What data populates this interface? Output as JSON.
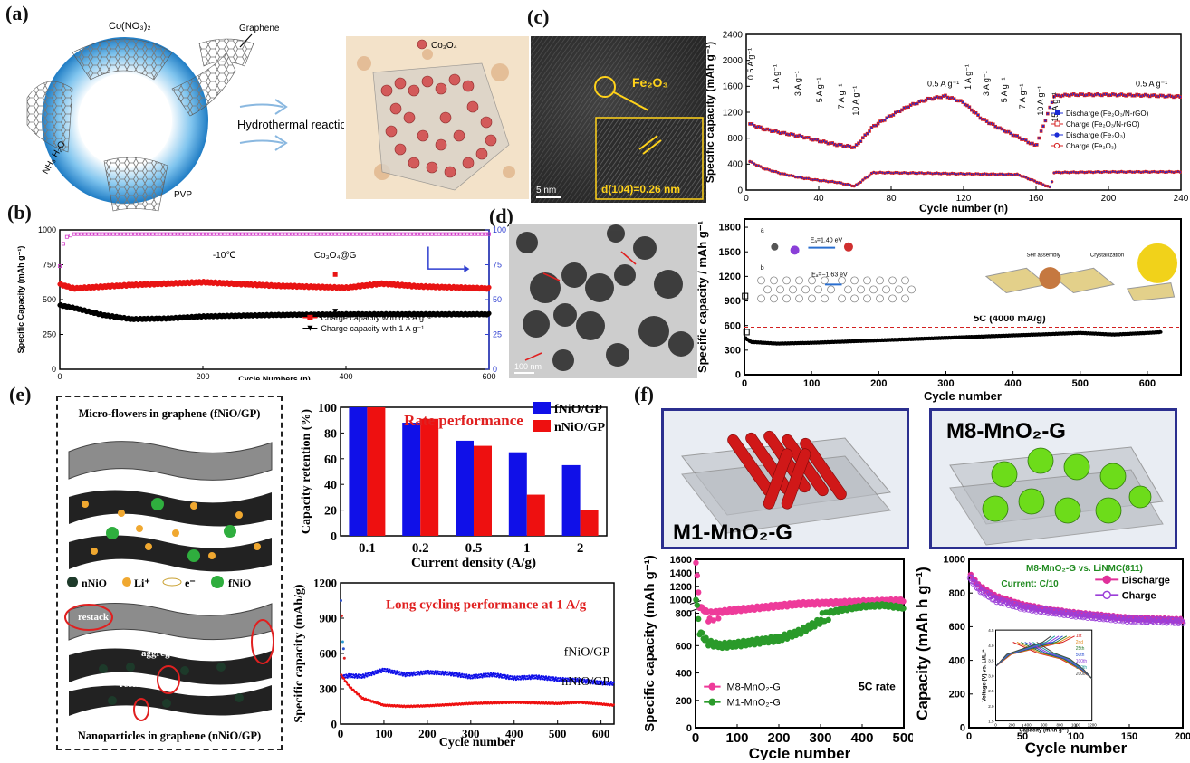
{
  "labels": {
    "a": "(a)",
    "b": "(b)",
    "c": "(c)",
    "d": "(d)",
    "e": "(e)",
    "f": "(f)"
  },
  "panel_a": {
    "reagent": "Co(NO₃)₂",
    "graphene": "Graphene",
    "nh3": "NH₃ H₂O",
    "pvp": "PVP",
    "reaction": "Hydrothermal reaction",
    "co3o4": "Co₃O₄",
    "colors": {
      "ring": "#2a9ad6",
      "sphere": "#d66a6a",
      "substrate": "#d9a779"
    }
  },
  "panel_c_tem": {
    "phase": "Fe₂O₃",
    "spacing": "d(104)=0.26 nm",
    "scale": "5 nm"
  },
  "panel_d_tem": {
    "scale": "100 nm"
  },
  "chart_data": [
    {
      "id": "c",
      "type": "scatter",
      "xlabel": "Cycle number (n)",
      "ylabel": "Specific capacity (mAh g⁻¹)",
      "xlim": [
        0,
        240
      ],
      "ylim": [
        0,
        2400
      ],
      "xticks": [
        0,
        40,
        80,
        120,
        160,
        200,
        240
      ],
      "yticks": [
        0,
        400,
        800,
        1200,
        1600,
        2000,
        2400
      ],
      "rate_labels": [
        "0.5 A g⁻¹",
        "1 A g⁻¹",
        "3 A g⁻¹",
        "5 A g⁻¹",
        "7 A g⁻¹",
        "10 A g⁻¹",
        "0.5 A g⁻¹",
        "1 A g⁻¹",
        "3 A g⁻¹",
        "5 A g⁻¹",
        "7 A g⁻¹",
        "10 A g⁻¹",
        "15 A g⁻¹",
        "0.5 A g⁻¹"
      ],
      "legend": [
        "Discharge (Fe₂O₃/N-rGO)",
        "Charge (Fe₂O₃/N-rGO)",
        "Discharge (Fe₂O₃)",
        "Charge (Fe₂O₃)"
      ],
      "series": [
        {
          "name": "Fe₂O₃/N-rGO",
          "x": [
            2,
            10,
            20,
            30,
            40,
            50,
            60,
            70,
            80,
            90,
            100,
            110,
            120,
            130,
            140,
            150,
            160,
            170,
            180,
            200,
            220,
            240
          ],
          "values": [
            1020,
            940,
            880,
            830,
            760,
            700,
            660,
            980,
            1150,
            1300,
            1400,
            1450,
            1350,
            1100,
            950,
            820,
            680,
            1450,
            1470,
            1470,
            1460,
            1440
          ]
        },
        {
          "name": "Fe₂O₃",
          "x": [
            2,
            10,
            20,
            30,
            40,
            50,
            60,
            70,
            100,
            120,
            150,
            168,
            170,
            200,
            240
          ],
          "values": [
            440,
            330,
            250,
            190,
            150,
            120,
            60,
            270,
            260,
            250,
            240,
            40,
            270,
            280,
            280
          ]
        }
      ],
      "colors": [
        "#1a2bd6",
        "#d62020"
      ]
    },
    {
      "id": "b",
      "type": "line",
      "xlabel": "Cycle Numbers (n)",
      "ylabel": "Specific Capacity (mAh g⁻¹)",
      "y2label": "Coulombic efficiency (%)",
      "annotation": "-10℃",
      "material": "Co₃O₄@G",
      "xlim": [
        0,
        600
      ],
      "ylim": [
        0,
        1000
      ],
      "y2lim": [
        0,
        100
      ],
      "xticks": [
        0,
        200,
        400,
        600
      ],
      "yticks": [
        0,
        250,
        500,
        750,
        1000
      ],
      "y2ticks": [
        0,
        25,
        50,
        75,
        100
      ],
      "legend": [
        "Charge capacity with 0.5 A g⁻¹",
        "Charge capacity with 1 A g⁻¹"
      ],
      "series": [
        {
          "name": "Charge capacity with 0.5 A g⁻¹",
          "x": [
            0,
            20,
            50,
            100,
            200,
            300,
            400,
            450,
            500,
            600
          ],
          "values": [
            610,
            580,
            590,
            605,
            625,
            600,
            585,
            615,
            595,
            580
          ]
        },
        {
          "name": "Charge capacity with 1 A g⁻¹",
          "x": [
            0,
            20,
            60,
            100,
            150,
            200,
            300,
            400,
            500,
            600
          ],
          "values": [
            460,
            440,
            390,
            360,
            365,
            380,
            390,
            395,
            395,
            395
          ]
        },
        {
          "name": "Coulombic efficiency",
          "x": [
            0,
            5,
            10,
            20,
            50,
            100,
            600
          ],
          "values": [
            74,
            90,
            95,
            97,
            97,
            97,
            97
          ]
        }
      ],
      "colors": [
        "#e81414",
        "#000000",
        "#d23cc8"
      ]
    },
    {
      "id": "d",
      "type": "line",
      "xlabel": "Cycle number",
      "ylabel": "Specific capacity / mAh g⁻¹",
      "annotation": "5C (4000 mA/g)",
      "inset_text": [
        "Eₐ=1.40 eV",
        "Eₐ=−1.63 eV",
        "Self assembly",
        "Crystallization",
        "a",
        "b"
      ],
      "xlim": [
        0,
        650
      ],
      "ylim": [
        0,
        1900
      ],
      "xticks": [
        0,
        100,
        200,
        300,
        400,
        500,
        600
      ],
      "yticks": [
        0,
        300,
        600,
        900,
        1200,
        1500,
        1800
      ],
      "series": [
        {
          "name": "",
          "x": [
            1,
            10,
            50,
            100,
            200,
            300,
            400,
            500,
            550,
            600,
            620
          ],
          "values": [
            450,
            400,
            380,
            390,
            420,
            450,
            480,
            510,
            490,
            510,
            520
          ]
        }
      ],
      "colors": [
        "#000000",
        "#d32020"
      ]
    },
    {
      "id": "e1",
      "type": "bar",
      "title": "Rate performance",
      "xlabel": "Current density (A/g)",
      "ylabel": "Capacity retention (%)",
      "categories": [
        "0.1",
        "0.2",
        "0.5",
        "1",
        "2"
      ],
      "series": [
        {
          "name": "fNiO/GP",
          "values": [
            100,
            88,
            74,
            65,
            55
          ]
        },
        {
          "name": "nNiO/GP",
          "values": [
            100,
            91,
            70,
            32,
            20
          ]
        }
      ],
      "ylim": [
        0,
        100
      ],
      "yticks": [
        0,
        20,
        40,
        60,
        80,
        100
      ],
      "colors": [
        "#1010e8",
        "#ee1010"
      ]
    },
    {
      "id": "e2",
      "type": "line",
      "title": "Long cycling performance at 1 A/g",
      "xlabel": "Cycle number",
      "ylabel": "Specific capacity (mAh/g)",
      "xlim": [
        0,
        630
      ],
      "ylim": [
        0,
        1200
      ],
      "xticks": [
        0,
        100,
        200,
        300,
        400,
        500,
        600
      ],
      "yticks": [
        0,
        300,
        600,
        900,
        1200
      ],
      "series": [
        {
          "name": "fNiO/GP",
          "x": [
            1,
            20,
            50,
            100,
            150,
            200,
            250,
            300,
            350,
            400,
            450,
            500,
            550,
            600,
            630
          ],
          "values": [
            400,
            410,
            405,
            460,
            420,
            440,
            430,
            400,
            420,
            390,
            400,
            380,
            370,
            350,
            345
          ]
        },
        {
          "name": "nNiO/GP",
          "x": [
            1,
            20,
            50,
            100,
            150,
            200,
            250,
            300,
            350,
            400,
            450,
            500,
            550,
            600,
            630
          ],
          "values": [
            420,
            320,
            220,
            160,
            150,
            155,
            165,
            175,
            180,
            185,
            180,
            175,
            185,
            170,
            160
          ]
        }
      ],
      "colors": [
        "#1010e8",
        "#ee1010"
      ]
    },
    {
      "id": "f1",
      "type": "scatter",
      "xlabel": "Cycle number",
      "ylabel": "Specific capacity (mAh g⁻¹)",
      "annotation": "5C rate",
      "xlim": [
        0,
        500
      ],
      "yticks": [
        0,
        200,
        400,
        600,
        800,
        1000,
        1200,
        1400,
        1600
      ],
      "xticks": [
        0,
        100,
        200,
        300,
        400,
        500
      ],
      "series": [
        {
          "name": "M8-MnO₂-G",
          "x": [
            1,
            10,
            30,
            60,
            100,
            150,
            200,
            250,
            300,
            350,
            400,
            450,
            500
          ],
          "values": [
            1550,
            900,
            800,
            820,
            850,
            880,
            910,
            940,
            950,
            960,
            970,
            980,
            990
          ]
        },
        {
          "name": "M1-MnO₂-G",
          "x": [
            1,
            10,
            30,
            60,
            100,
            150,
            200,
            250,
            300,
            350,
            400,
            450,
            500
          ],
          "values": [
            1000,
            700,
            620,
            600,
            610,
            630,
            650,
            700,
            780,
            850,
            900,
            920,
            880
          ]
        }
      ],
      "colors": [
        "#ee3b9a",
        "#2a9a2a"
      ]
    },
    {
      "id": "f2",
      "type": "scatter",
      "xlabel": "Cycle number",
      "ylabel": "Capacity (mAh h g⁻¹)",
      "annotation": "M8-MnO₂-G vs. LiNMC(811)",
      "current": "Current: C/10",
      "xlim": [
        0,
        200
      ],
      "ylim": [
        0,
        1000
      ],
      "xticks": [
        0,
        50,
        100,
        150,
        200
      ],
      "yticks": [
        0,
        200,
        400,
        600,
        800,
        1000
      ],
      "legend": [
        "Discharge",
        "Charge"
      ],
      "series": [
        {
          "name": "Discharge",
          "x": [
            1,
            10,
            25,
            50,
            75,
            100,
            125,
            150,
            175,
            200
          ],
          "values": [
            910,
            840,
            780,
            730,
            700,
            680,
            665,
            650,
            645,
            640
          ]
        },
        {
          "name": "Charge",
          "x": [
            1,
            10,
            25,
            50,
            75,
            100,
            125,
            150,
            175,
            200
          ],
          "values": [
            890,
            820,
            760,
            715,
            690,
            670,
            655,
            640,
            635,
            630
          ]
        }
      ],
      "inset": {
        "xlabel": "Capacity (mAh g⁻¹)",
        "ylabel": "Voltage (V) vs. Li/Li⁺",
        "cycles": [
          "1st",
          "2nd",
          "25th",
          "50th",
          "100th",
          "150th",
          "200th"
        ],
        "xticks": [
          "0",
          "200",
          "400",
          "600",
          "800",
          "1000",
          "1200"
        ],
        "yticks": [
          "1.5",
          "2.0",
          "2.5",
          "3.0",
          "3.5",
          "4.0",
          "4.5"
        ]
      },
      "colors": [
        "#e0309a",
        "#9b3fd8"
      ]
    }
  ],
  "panel_e_schematic": {
    "top_title": "Micro-flowers in graphene (fNiO/GP)",
    "bottom_title": "Nanoparticles in graphene (nNiO/GP)",
    "legend_nNiO": "nNiO",
    "legend_li": "Li⁺",
    "legend_e": "e⁻",
    "legend_fNiO": "fNiO",
    "restack": "restack",
    "aggregates": "aggregates"
  },
  "panel_f_images": {
    "m1": "M1-MnO₂-G",
    "m8": "M8-MnO₂-G"
  }
}
